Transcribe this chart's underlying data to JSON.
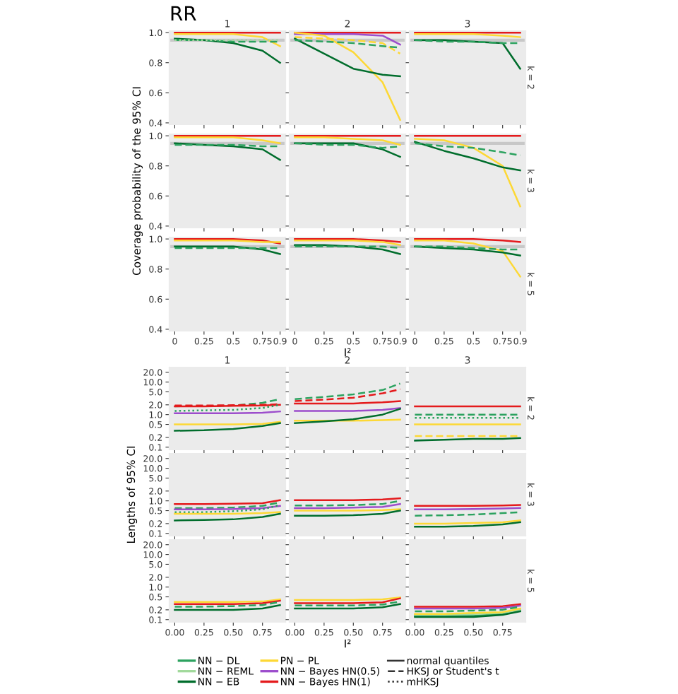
{
  "chart_data": [
    {
      "type": "line",
      "title": "1",
      "annotations": [
        "RR"
      ],
      "x": [
        0,
        0.25,
        0.5,
        0.75,
        0.9
      ],
      "xlim": [
        -0.045,
        0.945
      ],
      "xticks": [
        0,
        0.25,
        0.5,
        0.75,
        0.9
      ],
      "ylim": [
        0.39,
        1.01
      ],
      "yticks": [
        0.4,
        0.6,
        0.8,
        {
          "value": 1,
          "label": "1.0"
        }
      ],
      "tick_labels": "y",
      "bands": [
        {
          "axis": "y",
          "from": 0.94,
          "to": 0.96,
          "color": "#c8c8c8"
        }
      ],
      "series": [
        {
          "color": "#e41a1c",
          "line_style": "solid",
          "values": [
            1.0,
            1.0,
            1.0,
            1.0,
            1.0
          ]
        },
        {
          "color": "#fdd835",
          "line_style": "solid",
          "values": [
            0.99,
            0.99,
            0.99,
            0.97,
            0.91
          ]
        },
        {
          "color": "#006d2c",
          "line_style": "solid",
          "values": [
            0.96,
            0.95,
            0.93,
            0.88,
            0.8
          ]
        },
        {
          "color": "#2ca25f",
          "line_style": "dashed",
          "values": [
            0.95,
            0.95,
            0.94,
            0.94,
            0.94
          ]
        },
        {
          "color": "#a1d99b",
          "line_style": "dotted",
          "values": [
            0.95,
            0.95,
            0.95,
            0.95,
            0.95
          ]
        }
      ]
    },
    {
      "type": "line",
      "title": "2",
      "x": [
        0,
        0.25,
        0.5,
        0.75,
        0.9
      ],
      "xlim": [
        -0.045,
        0.945
      ],
      "xticks": [
        0,
        0.25,
        0.5,
        0.75,
        0.9
      ],
      "ylim": [
        0.39,
        1.01
      ],
      "yticks": [
        0.4,
        0.6,
        0.8,
        {
          "value": 1,
          "label": null
        }
      ],
      "tick_labels": false,
      "bands": [
        {
          "axis": "y",
          "from": 0.94,
          "to": 0.96,
          "color": "#c8c8c8"
        }
      ],
      "series": [
        {
          "color": "#e41a1c",
          "line_style": "solid",
          "values": [
            1.0,
            1.0,
            1.0,
            1.0,
            1.0
          ]
        },
        {
          "color": "#9c4dcc",
          "line_style": "solid",
          "values": [
            0.99,
            0.99,
            0.99,
            0.98,
            0.92
          ]
        },
        {
          "color": "#fdd835",
          "line_style": "solid",
          "values": [
            1.0,
            0.98,
            0.87,
            0.67,
            0.42
          ]
        },
        {
          "color": "#fdd835",
          "line_style": "dashed",
          "values": [
            0.97,
            0.96,
            0.95,
            0.93,
            0.86
          ]
        },
        {
          "color": "#006d2c",
          "line_style": "solid",
          "values": [
            0.96,
            0.86,
            0.76,
            0.72,
            0.71
          ]
        },
        {
          "color": "#2ca25f",
          "line_style": "dashed",
          "values": [
            0.95,
            0.94,
            0.93,
            0.91,
            0.9
          ]
        }
      ]
    },
    {
      "type": "line",
      "title": "3",
      "y2label": "k = 2",
      "x": [
        0,
        0.25,
        0.5,
        0.75,
        0.9
      ],
      "xlim": [
        -0.045,
        0.945
      ],
      "xticks": [
        0,
        0.25,
        0.5,
        0.75,
        0.9
      ],
      "ylim": [
        0.39,
        1.01
      ],
      "yticks": [
        0.4,
        0.6,
        0.8,
        {
          "value": 1,
          "label": null
        }
      ],
      "tick_labels": false,
      "bands": [
        {
          "axis": "y",
          "from": 0.94,
          "to": 0.96,
          "color": "#c8c8c8"
        }
      ],
      "series": [
        {
          "color": "#e41a1c",
          "line_style": "solid",
          "values": [
            1.0,
            1.0,
            1.0,
            1.0,
            1.0
          ]
        },
        {
          "color": "#fdd835",
          "line_style": "solid",
          "values": [
            0.99,
            0.99,
            0.99,
            0.98,
            0.97
          ]
        },
        {
          "color": "#006d2c",
          "line_style": "solid",
          "values": [
            0.95,
            0.95,
            0.94,
            0.93,
            0.76
          ]
        },
        {
          "color": "#2ca25f",
          "line_style": "dashed",
          "values": [
            0.95,
            0.94,
            0.94,
            0.93,
            0.93
          ]
        }
      ]
    },
    {
      "type": "line",
      "ylabel": "Coverage probability of the 95% CI",
      "x": [
        0,
        0.25,
        0.5,
        0.75,
        0.9
      ],
      "xlim": [
        -0.045,
        0.945
      ],
      "xticks": [
        0,
        0.25,
        0.5,
        0.75,
        0.9
      ],
      "ylim": [
        0.39,
        1.01
      ],
      "yticks": [
        0.4,
        0.6,
        0.8,
        {
          "value": 1,
          "label": "1.0"
        }
      ],
      "tick_labels": "y",
      "bands": [
        {
          "axis": "y",
          "from": 0.94,
          "to": 0.96,
          "color": "#c8c8c8"
        }
      ],
      "series": [
        {
          "color": "#e41a1c",
          "line_style": "solid",
          "values": [
            1.0,
            1.0,
            1.0,
            1.0,
            1.0
          ]
        },
        {
          "color": "#fdd835",
          "line_style": "solid",
          "values": [
            0.99,
            0.99,
            0.99,
            0.97,
            0.95
          ]
        },
        {
          "color": "#006d2c",
          "line_style": "solid",
          "values": [
            0.95,
            0.94,
            0.93,
            0.91,
            0.84
          ]
        },
        {
          "color": "#2ca25f",
          "line_style": "dashed",
          "values": [
            0.94,
            0.94,
            0.94,
            0.93,
            0.93
          ]
        }
      ]
    },
    {
      "type": "line",
      "x": [
        0,
        0.25,
        0.5,
        0.75,
        0.9
      ],
      "xlim": [
        -0.045,
        0.945
      ],
      "xticks": [
        0,
        0.25,
        0.5,
        0.75,
        0.9
      ],
      "ylim": [
        0.39,
        1.01
      ],
      "yticks": [
        0.4,
        0.6,
        0.8,
        {
          "value": 1,
          "label": null
        }
      ],
      "tick_labels": false,
      "bands": [
        {
          "axis": "y",
          "from": 0.94,
          "to": 0.96,
          "color": "#c8c8c8"
        }
      ],
      "series": [
        {
          "color": "#e41a1c",
          "line_style": "solid",
          "values": [
            1.0,
            1.0,
            1.0,
            1.0,
            1.0
          ]
        },
        {
          "color": "#fdd835",
          "line_style": "solid",
          "values": [
            0.99,
            0.99,
            0.98,
            0.97,
            0.94
          ]
        },
        {
          "color": "#006d2c",
          "line_style": "solid",
          "values": [
            0.95,
            0.95,
            0.95,
            0.91,
            0.86
          ]
        },
        {
          "color": "#2ca25f",
          "line_style": "dashed",
          "values": [
            0.95,
            0.94,
            0.94,
            0.92,
            0.93
          ]
        }
      ]
    },
    {
      "type": "line",
      "y2label": "k = 3",
      "x": [
        0,
        0.25,
        0.5,
        0.75,
        0.9
      ],
      "xlim": [
        -0.045,
        0.945
      ],
      "xticks": [
        0,
        0.25,
        0.5,
        0.75,
        0.9
      ],
      "ylim": [
        0.39,
        1.01
      ],
      "yticks": [
        0.4,
        0.6,
        0.8,
        {
          "value": 1,
          "label": null
        }
      ],
      "tick_labels": false,
      "bands": [
        {
          "axis": "y",
          "from": 0.94,
          "to": 0.96,
          "color": "#c8c8c8"
        }
      ],
      "series": [
        {
          "color": "#e41a1c",
          "line_style": "solid",
          "values": [
            1.0,
            1.0,
            1.0,
            1.0,
            1.0
          ]
        },
        {
          "color": "#fdd835",
          "line_style": "solid",
          "values": [
            0.98,
            0.97,
            0.92,
            0.8,
            0.53
          ]
        },
        {
          "color": "#006d2c",
          "line_style": "solid",
          "values": [
            0.96,
            0.9,
            0.85,
            0.79,
            0.77
          ]
        },
        {
          "color": "#2ca25f",
          "line_style": "dashed",
          "values": [
            0.95,
            0.93,
            0.92,
            0.89,
            0.87
          ]
        }
      ]
    },
    {
      "type": "line",
      "x": [
        0,
        0.25,
        0.5,
        0.75,
        0.9
      ],
      "xlim": [
        -0.045,
        0.945
      ],
      "xticks": [
        0,
        0.25,
        0.5,
        0.75,
        0.9
      ],
      "ylim": [
        0.39,
        1.01
      ],
      "yticks": [
        0.4,
        0.6,
        0.8,
        {
          "value": 1,
          "label": "1.0"
        }
      ],
      "bands": [
        {
          "axis": "y",
          "from": 0.94,
          "to": 0.96,
          "color": "#c8c8c8"
        }
      ],
      "series": [
        {
          "color": "#e41a1c",
          "line_style": "solid",
          "values": [
            1.0,
            1.0,
            1.0,
            0.99,
            0.97
          ]
        },
        {
          "color": "#fdd835",
          "line_style": "solid",
          "values": [
            0.99,
            0.99,
            0.99,
            0.98,
            0.98
          ]
        },
        {
          "color": "#006d2c",
          "line_style": "solid",
          "values": [
            0.95,
            0.95,
            0.95,
            0.93,
            0.9
          ]
        },
        {
          "color": "#2ca25f",
          "line_style": "dashed",
          "values": [
            0.94,
            0.94,
            0.94,
            0.94,
            0.94
          ]
        }
      ]
    },
    {
      "type": "line",
      "xlabel": "I²",
      "x": [
        0,
        0.25,
        0.5,
        0.75,
        0.9
      ],
      "xlim": [
        -0.045,
        0.945
      ],
      "xticks": [
        0,
        0.25,
        0.5,
        0.75,
        0.9
      ],
      "ylim": [
        0.39,
        1.01
      ],
      "yticks": [
        0.4,
        0.6,
        0.8,
        {
          "value": 1,
          "label": null
        }
      ],
      "tick_labels": "x",
      "bands": [
        {
          "axis": "y",
          "from": 0.94,
          "to": 0.96,
          "color": "#c8c8c8"
        }
      ],
      "series": [
        {
          "color": "#e41a1c",
          "line_style": "solid",
          "values": [
            1.0,
            1.0,
            1.0,
            0.99,
            0.98
          ]
        },
        {
          "color": "#fdd835",
          "line_style": "solid",
          "values": [
            0.99,
            0.99,
            0.99,
            0.98,
            0.96
          ]
        },
        {
          "color": "#006d2c",
          "line_style": "solid",
          "values": [
            0.96,
            0.96,
            0.95,
            0.93,
            0.9
          ]
        },
        {
          "color": "#2ca25f",
          "line_style": "dashed",
          "values": [
            0.95,
            0.95,
            0.95,
            0.95,
            0.94
          ]
        }
      ]
    },
    {
      "type": "line",
      "y2label": "k = 5",
      "x": [
        0,
        0.25,
        0.5,
        0.75,
        0.9
      ],
      "xlim": [
        -0.045,
        0.945
      ],
      "xticks": [
        0,
        0.25,
        0.5,
        0.75,
        0.9
      ],
      "ylim": [
        0.39,
        1.01
      ],
      "yticks": [
        0.4,
        0.6,
        0.8,
        {
          "value": 1,
          "label": null
        }
      ],
      "tick_labels": "x",
      "bands": [
        {
          "axis": "y",
          "from": 0.94,
          "to": 0.96,
          "color": "#c8c8c8"
        }
      ],
      "series": [
        {
          "color": "#e41a1c",
          "line_style": "solid",
          "values": [
            1.0,
            1.0,
            1.0,
            0.99,
            0.98
          ]
        },
        {
          "color": "#fdd835",
          "line_style": "solid",
          "values": [
            0.99,
            0.99,
            0.97,
            0.92,
            0.75
          ]
        },
        {
          "color": "#006d2c",
          "line_style": "solid",
          "values": [
            0.95,
            0.94,
            0.93,
            0.91,
            0.89
          ]
        },
        {
          "color": "#2ca25f",
          "line_style": "dashed",
          "values": [
            0.95,
            0.95,
            0.94,
            0.93,
            0.93
          ]
        }
      ]
    },
    {
      "type": "line",
      "title": "1",
      "log": true,
      "x": [
        0,
        0.25,
        0.5,
        0.75,
        0.9
      ],
      "xlim": [
        -0.045,
        0.945
      ],
      "xticks": [
        {
          "value": 0,
          "label": null
        },
        {
          "value": 0.25,
          "label": null
        },
        {
          "value": 0.5,
          "label": null
        },
        {
          "value": 0.75,
          "label": null
        }
      ],
      "ylim": [
        0.085,
        28
      ],
      "yticks": [
        0.1,
        0.2,
        0.5,
        {
          "value": 1,
          "label": "1.0"
        },
        {
          "value": 2,
          "label": "2.0"
        },
        {
          "value": 5,
          "label": "5.0"
        },
        {
          "value": 10,
          "label": "10.0"
        },
        {
          "value": 20,
          "label": "20.0"
        }
      ],
      "tick_labels": "y",
      "series": [
        {
          "color": "#2ca25f",
          "line_style": "dashed",
          "values": [
            1.8,
            1.85,
            1.9,
            2.3,
            3.0
          ]
        },
        {
          "color": "#e41a1c",
          "line_style": "dashed",
          "values": [
            1.9,
            1.9,
            1.95,
            2.0,
            2.1
          ]
        },
        {
          "color": "#e41a1c",
          "line_style": "solid",
          "values": [
            1.8,
            1.8,
            1.85,
            1.9,
            2.0
          ]
        },
        {
          "color": "#2ca25f",
          "line_style": "dotted",
          "values": [
            1.3,
            1.35,
            1.4,
            1.6,
            2.0
          ]
        },
        {
          "color": "#9c4dcc",
          "line_style": "solid",
          "values": [
            1.1,
            1.1,
            1.1,
            1.15,
            1.25
          ]
        },
        {
          "color": "#fdd835",
          "line_style": "solid",
          "values": [
            0.5,
            0.5,
            0.5,
            0.52,
            0.6
          ]
        },
        {
          "color": "#006d2c",
          "line_style": "solid",
          "values": [
            0.32,
            0.33,
            0.36,
            0.45,
            0.55
          ]
        }
      ]
    },
    {
      "type": "line",
      "title": "2",
      "log": true,
      "x": [
        0,
        0.25,
        0.5,
        0.75,
        0.9
      ],
      "xlim": [
        -0.045,
        0.945
      ],
      "xticks": [
        {
          "value": 0,
          "label": null
        },
        {
          "value": 0.25,
          "label": null
        },
        {
          "value": 0.5,
          "label": null
        },
        {
          "value": 0.75,
          "label": null
        }
      ],
      "ylim": [
        0.085,
        28
      ],
      "yticks": [
        0.1,
        0.2,
        0.5,
        {
          "value": 1,
          "label": null
        },
        {
          "value": 2,
          "label": null
        },
        {
          "value": 5,
          "label": null
        },
        {
          "value": 10,
          "label": null
        },
        {
          "value": 20,
          "label": null
        }
      ],
      "tick_labels": false,
      "series": [
        {
          "color": "#2ca25f",
          "line_style": "dashed",
          "values": [
            3.0,
            3.5,
            4.2,
            5.7,
            9.0
          ]
        },
        {
          "color": "#e41a1c",
          "line_style": "dashed",
          "values": [
            2.6,
            2.9,
            3.3,
            4.5,
            6.0
          ]
        },
        {
          "color": "#e41a1c",
          "line_style": "solid",
          "values": [
            2.2,
            2.2,
            2.2,
            2.4,
            2.6
          ]
        },
        {
          "color": "#9c4dcc",
          "line_style": "solid",
          "values": [
            1.3,
            1.3,
            1.3,
            1.4,
            1.6
          ]
        },
        {
          "color": "#fdd835",
          "line_style": "solid",
          "values": [
            0.65,
            0.65,
            0.65,
            0.68,
            0.7
          ]
        },
        {
          "color": "#006d2c",
          "line_style": "solid",
          "values": [
            0.55,
            0.62,
            0.72,
            1.0,
            1.5
          ]
        }
      ]
    },
    {
      "type": "line",
      "title": "3",
      "y2label": "k = 2",
      "log": true,
      "x": [
        0,
        0.25,
        0.5,
        0.75,
        0.9
      ],
      "xlim": [
        -0.045,
        0.945
      ],
      "xticks": [
        {
          "value": 0,
          "label": null
        },
        {
          "value": 0.25,
          "label": null
        },
        {
          "value": 0.5,
          "label": null
        },
        {
          "value": 0.75,
          "label": null
        }
      ],
      "ylim": [
        0.085,
        28
      ],
      "yticks": [
        0.1,
        0.2,
        0.5,
        {
          "value": 1,
          "label": null
        },
        {
          "value": 2,
          "label": null
        },
        {
          "value": 5,
          "label": null
        },
        {
          "value": 10,
          "label": null
        },
        {
          "value": 20,
          "label": null
        }
      ],
      "tick_labels": false,
      "series": [
        {
          "color": "#e41a1c",
          "line_style": "solid",
          "values": [
            1.8,
            1.8,
            1.8,
            1.8,
            1.8
          ]
        },
        {
          "color": "#2ca25f",
          "line_style": "dashed",
          "values": [
            1.0,
            1.0,
            1.0,
            1.0,
            1.0
          ]
        },
        {
          "color": "#2ca25f",
          "line_style": "dotted",
          "values": [
            0.8,
            0.8,
            0.8,
            0.8,
            0.8
          ]
        },
        {
          "color": "#fdd835",
          "line_style": "solid",
          "values": [
            0.5,
            0.5,
            0.5,
            0.5,
            0.5
          ]
        },
        {
          "color": "#fdd835",
          "line_style": "dashed",
          "values": [
            0.22,
            0.22,
            0.22,
            0.22,
            0.22
          ]
        },
        {
          "color": "#006d2c",
          "line_style": "solid",
          "values": [
            0.16,
            0.17,
            0.18,
            0.18,
            0.19
          ]
        }
      ]
    },
    {
      "type": "line",
      "ylabel": "Lengths of 95% CI",
      "log": true,
      "x": [
        0,
        0.25,
        0.5,
        0.75,
        0.9
      ],
      "xlim": [
        -0.045,
        0.945
      ],
      "xticks": [
        {
          "value": 0,
          "label": null
        },
        {
          "value": 0.25,
          "label": null
        },
        {
          "value": 0.5,
          "label": null
        },
        {
          "value": 0.75,
          "label": null
        }
      ],
      "ylim": [
        0.085,
        28
      ],
      "yticks": [
        0.1,
        0.2,
        0.5,
        {
          "value": 1,
          "label": "1.0"
        },
        {
          "value": 2,
          "label": "2.0"
        },
        {
          "value": 5,
          "label": "5.0"
        },
        {
          "value": 10,
          "label": "10.0"
        },
        {
          "value": 20,
          "label": "20.0"
        }
      ],
      "tick_labels": "y",
      "series": [
        {
          "color": "#e41a1c",
          "line_style": "solid",
          "values": [
            0.8,
            0.8,
            0.82,
            0.85,
            1.05
          ]
        },
        {
          "color": "#2ca25f",
          "line_style": "dashed",
          "values": [
            0.6,
            0.6,
            0.62,
            0.7,
            0.9
          ]
        },
        {
          "color": "#9c4dcc",
          "line_style": "solid",
          "values": [
            0.55,
            0.55,
            0.56,
            0.6,
            0.7
          ]
        },
        {
          "color": "#2ca25f",
          "line_style": "dotted",
          "values": [
            0.45,
            0.45,
            0.48,
            0.55,
            0.75
          ]
        },
        {
          "color": "#fdd835",
          "line_style": "solid",
          "values": [
            0.4,
            0.4,
            0.4,
            0.42,
            0.45
          ]
        },
        {
          "color": "#006d2c",
          "line_style": "solid",
          "values": [
            0.25,
            0.26,
            0.27,
            0.32,
            0.4
          ]
        }
      ]
    },
    {
      "type": "line",
      "log": true,
      "x": [
        0,
        0.25,
        0.5,
        0.75,
        0.9
      ],
      "xlim": [
        -0.045,
        0.945
      ],
      "xticks": [
        {
          "value": 0,
          "label": null
        },
        {
          "value": 0.25,
          "label": null
        },
        {
          "value": 0.5,
          "label": null
        },
        {
          "value": 0.75,
          "label": null
        }
      ],
      "ylim": [
        0.085,
        28
      ],
      "yticks": [
        0.1,
        0.2,
        0.5,
        {
          "value": 1,
          "label": null
        },
        {
          "value": 2,
          "label": null
        },
        {
          "value": 5,
          "label": null
        },
        {
          "value": 10,
          "label": null
        },
        {
          "value": 20,
          "label": null
        }
      ],
      "tick_labels": false,
      "series": [
        {
          "color": "#e41a1c",
          "line_style": "solid",
          "values": [
            1.05,
            1.05,
            1.05,
            1.1,
            1.2
          ]
        },
        {
          "color": "#2ca25f",
          "line_style": "dashed",
          "values": [
            0.72,
            0.72,
            0.74,
            0.8,
            1.0
          ]
        },
        {
          "color": "#9c4dcc",
          "line_style": "solid",
          "values": [
            0.6,
            0.6,
            0.62,
            0.65,
            0.8
          ]
        },
        {
          "color": "#fdd835",
          "line_style": "solid",
          "values": [
            0.5,
            0.5,
            0.5,
            0.52,
            0.55
          ]
        },
        {
          "color": "#006d2c",
          "line_style": "solid",
          "values": [
            0.35,
            0.35,
            0.36,
            0.4,
            0.5
          ]
        }
      ]
    },
    {
      "type": "line",
      "y2label": "k = 3",
      "log": true,
      "x": [
        0,
        0.25,
        0.5,
        0.75,
        0.9
      ],
      "xlim": [
        -0.045,
        0.945
      ],
      "xticks": [
        {
          "value": 0,
          "label": null
        },
        {
          "value": 0.25,
          "label": null
        },
        {
          "value": 0.5,
          "label": null
        },
        {
          "value": 0.75,
          "label": null
        }
      ],
      "ylim": [
        0.085,
        28
      ],
      "yticks": [
        0.1,
        0.2,
        0.5,
        {
          "value": 1,
          "label": null
        },
        {
          "value": 2,
          "label": null
        },
        {
          "value": 5,
          "label": null
        },
        {
          "value": 10,
          "label": null
        },
        {
          "value": 20,
          "label": null
        }
      ],
      "tick_labels": false,
      "series": [
        {
          "color": "#e41a1c",
          "line_style": "solid",
          "values": [
            0.7,
            0.7,
            0.7,
            0.72,
            0.75
          ]
        },
        {
          "color": "#9c4dcc",
          "line_style": "solid",
          "values": [
            0.55,
            0.55,
            0.56,
            0.58,
            0.6
          ]
        },
        {
          "color": "#2ca25f",
          "line_style": "dashed",
          "values": [
            0.35,
            0.36,
            0.38,
            0.42,
            0.45
          ]
        },
        {
          "color": "#fdd835",
          "line_style": "solid",
          "values": [
            0.2,
            0.2,
            0.21,
            0.22,
            0.25
          ]
        },
        {
          "color": "#006d2c",
          "line_style": "solid",
          "values": [
            0.16,
            0.16,
            0.17,
            0.19,
            0.22
          ]
        }
      ]
    },
    {
      "type": "line",
      "log": true,
      "x": [
        0,
        0.25,
        0.5,
        0.75,
        0.9
      ],
      "xlim": [
        -0.045,
        0.945
      ],
      "xticks": [
        {
          "value": 0,
          "label": "0.00"
        },
        {
          "value": 0.25,
          "label": "0.25"
        },
        {
          "value": 0.5,
          "label": "0.50"
        },
        {
          "value": 0.75,
          "label": "0.75"
        }
      ],
      "ylim": [
        0.085,
        28
      ],
      "yticks": [
        0.1,
        0.2,
        0.5,
        {
          "value": 1,
          "label": "1.0"
        },
        {
          "value": 2,
          "label": "2.0"
        },
        {
          "value": 5,
          "label": "5.0"
        },
        {
          "value": 10,
          "label": "10.0"
        },
        {
          "value": 20,
          "label": "20.0"
        }
      ],
      "series": [
        {
          "color": "#fdd835",
          "line_style": "solid",
          "values": [
            0.35,
            0.35,
            0.35,
            0.36,
            0.42
          ]
        },
        {
          "color": "#e41a1c",
          "line_style": "solid",
          "values": [
            0.3,
            0.3,
            0.3,
            0.32,
            0.38
          ]
        },
        {
          "color": "#2ca25f",
          "line_style": "dashed",
          "values": [
            0.25,
            0.25,
            0.26,
            0.28,
            0.35
          ]
        },
        {
          "color": "#006d2c",
          "line_style": "solid",
          "values": [
            0.2,
            0.2,
            0.2,
            0.22,
            0.28
          ]
        }
      ]
    },
    {
      "type": "line",
      "xlabel": "I²",
      "log": true,
      "x": [
        0,
        0.25,
        0.5,
        0.75,
        0.9
      ],
      "xlim": [
        -0.045,
        0.945
      ],
      "xticks": [
        {
          "value": 0,
          "label": "0.00"
        },
        {
          "value": 0.25,
          "label": "0.25"
        },
        {
          "value": 0.5,
          "label": "0.50"
        },
        {
          "value": 0.75,
          "label": "0.75"
        }
      ],
      "ylim": [
        0.085,
        28
      ],
      "yticks": [
        0.1,
        0.2,
        0.5,
        {
          "value": 1,
          "label": null
        },
        {
          "value": 2,
          "label": null
        },
        {
          "value": 5,
          "label": null
        },
        {
          "value": 10,
          "label": null
        },
        {
          "value": 20,
          "label": null
        }
      ],
      "tick_labels": "x",
      "series": [
        {
          "color": "#fdd835",
          "line_style": "solid",
          "values": [
            0.4,
            0.4,
            0.4,
            0.42,
            0.48
          ]
        },
        {
          "color": "#e41a1c",
          "line_style": "solid",
          "values": [
            0.32,
            0.32,
            0.32,
            0.34,
            0.45
          ]
        },
        {
          "color": "#2ca25f",
          "line_style": "dashed",
          "values": [
            0.27,
            0.27,
            0.27,
            0.29,
            0.36
          ]
        },
        {
          "color": "#006d2c",
          "line_style": "solid",
          "values": [
            0.22,
            0.22,
            0.22,
            0.24,
            0.3
          ]
        }
      ]
    },
    {
      "type": "line",
      "y2label": "k = 5",
      "log": true,
      "legend": "bottom",
      "annotations": [
        "normal quantiles",
        "HKSJ or Student's t",
        "mHKSJ"
      ],
      "x": [
        0,
        0.25,
        0.5,
        0.75,
        0.9
      ],
      "xlim": [
        -0.045,
        0.945
      ],
      "xticks": [
        {
          "value": 0,
          "label": "0.00"
        },
        {
          "value": 0.25,
          "label": "0.25"
        },
        {
          "value": 0.5,
          "label": "0.50"
        },
        {
          "value": 0.75,
          "label": "0.75"
        }
      ],
      "ylim": [
        0.085,
        28
      ],
      "yticks": [
        0.1,
        0.2,
        0.5,
        {
          "value": 1,
          "label": null
        },
        {
          "value": 2,
          "label": null
        },
        {
          "value": 5,
          "label": null
        },
        {
          "value": 10,
          "label": null
        },
        {
          "value": 20,
          "label": null
        }
      ],
      "tick_labels": "x",
      "series": [
        {
          "name": "NN − DL",
          "color": "#2ca25f",
          "line_style": "solid",
          "values": [
            0.13,
            0.13,
            0.13,
            0.15,
            0.19
          ]
        },
        {
          "name": "NN − REML",
          "color": "#a1d99b",
          "line_style": "solid",
          "values": [
            0.14,
            0.14,
            0.15,
            0.16,
            0.2
          ]
        },
        {
          "name": "NN − EB",
          "color": "#006d2c",
          "line_style": "solid",
          "values": [
            0.12,
            0.12,
            0.12,
            0.14,
            0.18
          ]
        },
        {
          "name": "PN − PL",
          "color": "#fdd835",
          "line_style": "solid",
          "values": [
            0.15,
            0.15,
            0.16,
            0.17,
            0.22
          ]
        },
        {
          "name": "NN − Bayes HN(0.5)",
          "color": "#9c4dcc",
          "line_style": "solid",
          "values": [
            0.22,
            0.22,
            0.22,
            0.23,
            0.27
          ]
        },
        {
          "name": "NN − Bayes HN(1)",
          "color": "#e41a1c",
          "line_style": "solid",
          "values": [
            0.25,
            0.25,
            0.25,
            0.26,
            0.3
          ]
        },
        {
          "color": "#2ca25f",
          "line_style": "dashed",
          "values": [
            0.18,
            0.18,
            0.19,
            0.2,
            0.25
          ]
        }
      ]
    }
  ]
}
